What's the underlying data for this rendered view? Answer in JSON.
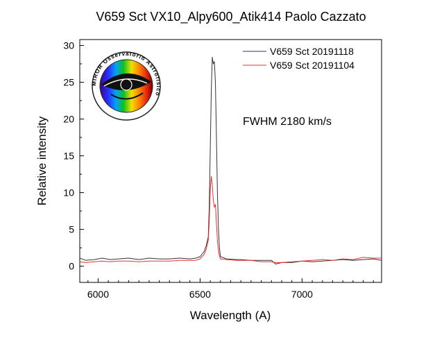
{
  "chart_data": {
    "type": "line",
    "title": "V659 Sct VX10_Alpy600_Atik414 Paolo Cazzato",
    "xlabel": "Wavelength (A)",
    "ylabel": "Relative intensity",
    "xlim": [
      5910,
      7390
    ],
    "ylim": [
      -2.2,
      30.8
    ],
    "x_ticks": [
      6000,
      6500,
      7000
    ],
    "y_ticks": [
      0,
      5,
      10,
      15,
      20,
      25,
      30
    ],
    "legend_position": "top-right",
    "annotation": "FWHM 2180 km/s",
    "series": [
      {
        "name": "V659 Sct 20191118",
        "color": "#333333",
        "points": [
          [
            5910,
            1.1
          ],
          [
            5940,
            0.8
          ],
          [
            5980,
            0.9
          ],
          [
            6020,
            1.1
          ],
          [
            6060,
            0.9
          ],
          [
            6100,
            1.0
          ],
          [
            6150,
            1.1
          ],
          [
            6200,
            0.9
          ],
          [
            6250,
            1.1
          ],
          [
            6300,
            1.0
          ],
          [
            6350,
            1.0
          ],
          [
            6400,
            1.1
          ],
          [
            6450,
            1.0
          ],
          [
            6480,
            1.1
          ],
          [
            6500,
            1.3
          ],
          [
            6520,
            2.0
          ],
          [
            6530,
            2.8
          ],
          [
            6540,
            4.0
          ],
          [
            6545,
            8.0
          ],
          [
            6550,
            16.0
          ],
          [
            6555,
            24.0
          ],
          [
            6560,
            28.4
          ],
          [
            6565,
            27.5
          ],
          [
            6570,
            27.8
          ],
          [
            6575,
            25.0
          ],
          [
            6580,
            18.0
          ],
          [
            6585,
            10.0
          ],
          [
            6590,
            5.0
          ],
          [
            6595,
            2.5
          ],
          [
            6600,
            1.3
          ],
          [
            6630,
            1.0
          ],
          [
            6680,
            0.9
          ],
          [
            6700,
            0.9
          ],
          [
            6750,
            0.8
          ],
          [
            6800,
            0.8
          ],
          [
            6850,
            0.8
          ],
          [
            6870,
            0.3
          ],
          [
            6900,
            0.5
          ],
          [
            6950,
            0.5
          ],
          [
            7000,
            0.7
          ],
          [
            7050,
            0.6
          ],
          [
            7100,
            0.7
          ],
          [
            7150,
            0.8
          ],
          [
            7200,
            0.9
          ],
          [
            7250,
            0.8
          ],
          [
            7300,
            0.9
          ],
          [
            7350,
            1.0
          ],
          [
            7390,
            0.8
          ]
        ]
      },
      {
        "name": "V659 Sct 20191104",
        "color": "#e8312f",
        "points": [
          [
            5910,
            0.6
          ],
          [
            5940,
            0.5
          ],
          [
            5980,
            0.6
          ],
          [
            6020,
            0.7
          ],
          [
            6060,
            0.6
          ],
          [
            6100,
            0.7
          ],
          [
            6150,
            0.7
          ],
          [
            6200,
            0.6
          ],
          [
            6250,
            0.7
          ],
          [
            6300,
            0.7
          ],
          [
            6350,
            0.7
          ],
          [
            6400,
            0.8
          ],
          [
            6450,
            0.8
          ],
          [
            6480,
            0.8
          ],
          [
            6500,
            1.0
          ],
          [
            6520,
            1.6
          ],
          [
            6530,
            2.3
          ],
          [
            6540,
            3.5
          ],
          [
            6545,
            6.0
          ],
          [
            6550,
            10.5
          ],
          [
            6555,
            12.2
          ],
          [
            6560,
            11.0
          ],
          [
            6565,
            9.0
          ],
          [
            6570,
            8.0
          ],
          [
            6575,
            8.4
          ],
          [
            6580,
            6.0
          ],
          [
            6585,
            3.5
          ],
          [
            6590,
            2.0
          ],
          [
            6595,
            1.4
          ],
          [
            6600,
            1.0
          ],
          [
            6630,
            0.9
          ],
          [
            6680,
            0.8
          ],
          [
            6700,
            0.8
          ],
          [
            6750,
            0.8
          ],
          [
            6800,
            0.6
          ],
          [
            6850,
            0.6
          ],
          [
            6870,
            0.5
          ],
          [
            6900,
            0.5
          ],
          [
            6950,
            0.6
          ],
          [
            7000,
            0.7
          ],
          [
            7050,
            0.8
          ],
          [
            7100,
            0.9
          ],
          [
            7150,
            0.8
          ],
          [
            7200,
            1.0
          ],
          [
            7250,
            0.9
          ],
          [
            7300,
            1.2
          ],
          [
            7350,
            1.1
          ],
          [
            7390,
            1.1
          ]
        ]
      }
    ]
  },
  "logo": {
    "text": "MIROR Osservatorio Astrofisico"
  }
}
